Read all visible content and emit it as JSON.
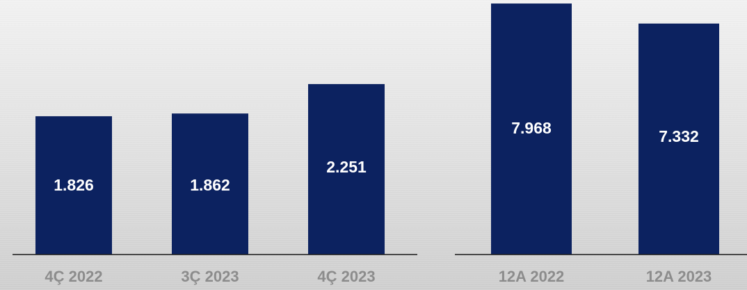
{
  "chart_data": [
    {
      "type": "bar",
      "categories": [
        "4Ç 2022",
        "3Ç 2023",
        "4Ç 2023"
      ],
      "values": [
        1826,
        1862,
        2251
      ],
      "data_labels": [
        "1.826",
        "1.862",
        "2.251"
      ],
      "color": "#0c2260"
    },
    {
      "type": "bar",
      "categories": [
        "12A 2022",
        "12A 2023"
      ],
      "values": [
        7968,
        7332
      ],
      "data_labels": [
        "7.968",
        "7.332"
      ],
      "color": "#0c2260"
    }
  ]
}
